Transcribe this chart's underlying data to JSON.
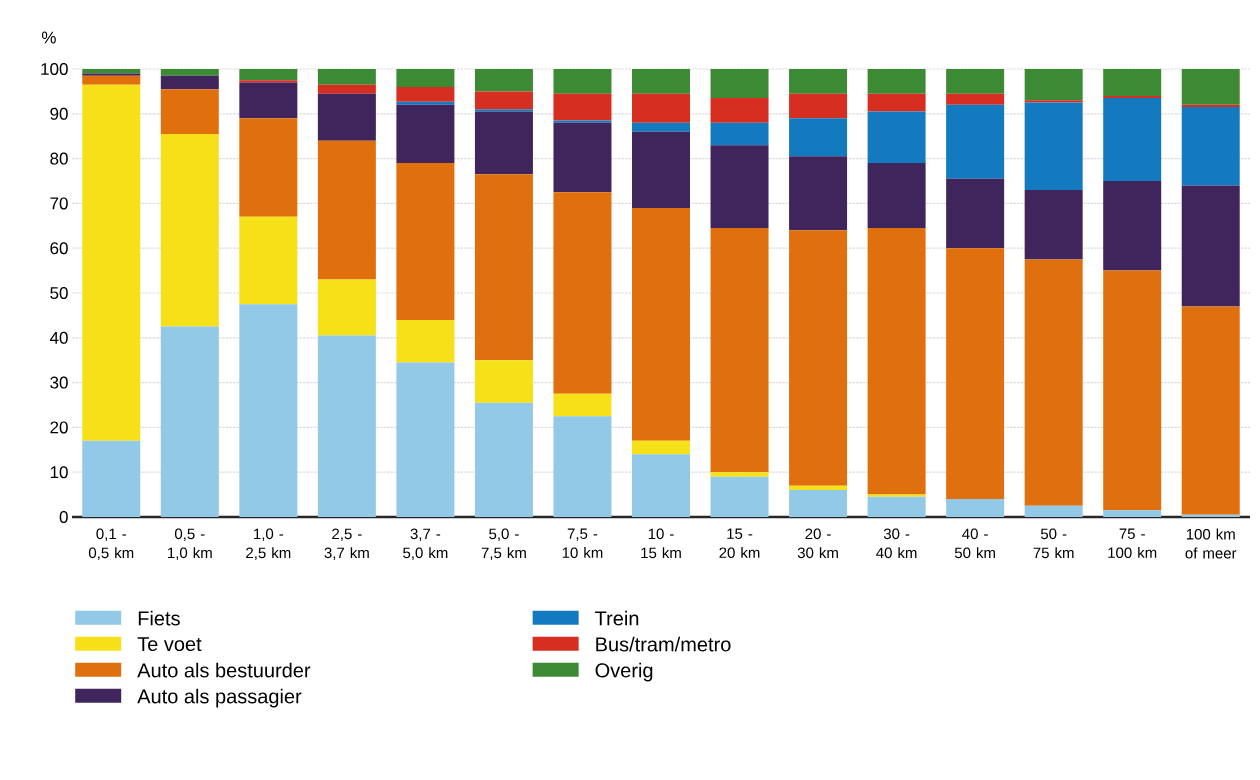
{
  "chart_data": {
    "type": "bar",
    "stacked": true,
    "ylabel": "%",
    "categories": [
      "0,1 - 0,5 km",
      "0,5 - 1,0 km",
      "1,0 - 2,5 km",
      "2,5 - 3,7 km",
      "3,7 - 5,0 km",
      "5,0 - 7,5 km",
      "7,5 - 10 km",
      "10 - 15 km",
      "15 - 20 km",
      "20 - 30 km",
      "30 - 40 km",
      "40 - 50 km",
      "50 - 75 km",
      "75 - 100 km",
      "100 km of meer"
    ],
    "series": [
      {
        "name": "Fiets",
        "color": "#92c9e7",
        "values": [
          17,
          42.5,
          47.5,
          40.5,
          34.5,
          25.5,
          22.5,
          14,
          9,
          6,
          4.5,
          4,
          2.5,
          1.5,
          0.5
        ]
      },
      {
        "name": "Te voet",
        "color": "#f6e018",
        "values": [
          79.5,
          43,
          19.5,
          12.5,
          9.5,
          9.5,
          5,
          3,
          1,
          1,
          0.5,
          0,
          0,
          0,
          0
        ]
      },
      {
        "name": "Auto als bestuurder",
        "color": "#e0700e",
        "values": [
          2,
          10,
          22,
          31,
          35,
          41.5,
          45,
          52,
          54.5,
          57,
          59.5,
          56,
          55,
          53.5,
          46.5
        ]
      },
      {
        "name": "Auto als passagier",
        "color": "#40245c",
        "values": [
          0.5,
          3,
          8,
          10.5,
          13,
          14,
          15.5,
          17,
          18.5,
          16.5,
          14.5,
          15.5,
          15.5,
          20,
          27
        ]
      },
      {
        "name": "Trein",
        "color": "#147abf",
        "values": [
          0,
          0,
          0,
          0,
          0.7,
          0.5,
          0.5,
          2,
          5,
          8.5,
          11.5,
          16.5,
          19.5,
          18.5,
          17.5
        ]
      },
      {
        "name": "Bus/tram/metro",
        "color": "#d62e20",
        "values": [
          0,
          0,
          0.5,
          2,
          3.3,
          4,
          6,
          6.5,
          5.5,
          5.5,
          4,
          2.5,
          0.5,
          0.5,
          0.5
        ]
      },
      {
        "name": "Overig",
        "color": "#3d8a35",
        "values": [
          1,
          1.5,
          2.5,
          3.5,
          4,
          5,
          5.5,
          5.5,
          6.5,
          5.5,
          5.5,
          5.5,
          7,
          6,
          8
        ]
      }
    ],
    "ylim": [
      0,
      100
    ],
    "yticks": [
      0,
      10,
      20,
      30,
      40,
      50,
      60,
      70,
      80,
      90,
      100
    ],
    "grid": "y",
    "legend": "bottom"
  }
}
